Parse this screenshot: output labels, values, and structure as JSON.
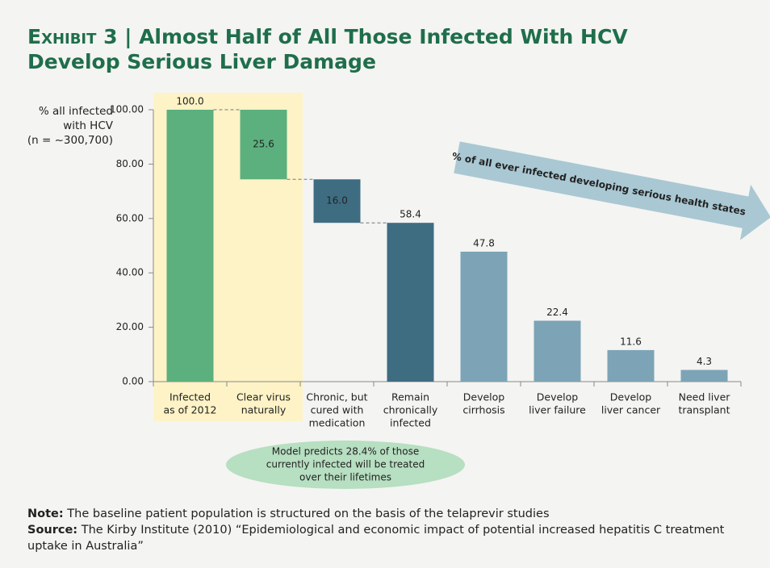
{
  "title_prefix": "Exhibit 3",
  "title": "Almost Half of All Those Infected With HCV Develop Serious Liver Damage",
  "chart_data": {
    "type": "waterfall",
    "y_label": [
      "% all infected",
      "with HCV",
      "(n = ~300,700)"
    ],
    "categories": [
      [
        "Infected",
        "as of 2012"
      ],
      [
        "Clear virus",
        "naturally"
      ],
      [
        "Chronic, but",
        "cured with",
        "medication"
      ],
      [
        "Remain",
        "chronically",
        "infected"
      ],
      [
        "Develop",
        "cirrhosis"
      ],
      [
        "Develop",
        "liver failure"
      ],
      [
        "Develop",
        "liver cancer"
      ],
      [
        "Need liver",
        "transplant"
      ]
    ],
    "values": [
      100.0,
      25.6,
      16.0,
      58.4,
      47.8,
      22.4,
      11.6,
      4.3
    ],
    "value_labels": [
      "100.0",
      "25.6",
      "16.0",
      "58.4",
      "47.8",
      "22.4",
      "11.6",
      "4.3"
    ],
    "kinds": [
      "total",
      "decrease",
      "decrease",
      "total",
      "total",
      "total",
      "total",
      "total"
    ],
    "colors": [
      "#5cb07e",
      "#5cb07e",
      "#3e6d82",
      "#3e6d82",
      "#7ca4b6",
      "#7ca4b6",
      "#7ca4b6",
      "#7ca4b6"
    ],
    "ylim": [
      0,
      100
    ],
    "yticks": [
      {
        "value": 0,
        "label": "0.00"
      },
      {
        "value": 20,
        "label": "20.00"
      },
      {
        "value": 40,
        "label": "40.00"
      },
      {
        "value": 60,
        "label": "60.00"
      },
      {
        "value": 80,
        "label": "80.00"
      },
      {
        "value": 100,
        "label": "100.00"
      }
    ],
    "arrow_annotation": "% of all ever infected developing serious health states",
    "ellipse_annotation": [
      "Model predicts  28.4% of those",
      "currently infected will be treated",
      "over their lifetimes"
    ]
  },
  "note_label": "Note:",
  "note": "The baseline patient population is structured on the basis of the telaprevir studies",
  "source_label": "Source:",
  "source": "The Kirby Institute (2010) “Epidemiological and economic impact of potential increased hepatitis C treatment uptake in Australia”"
}
